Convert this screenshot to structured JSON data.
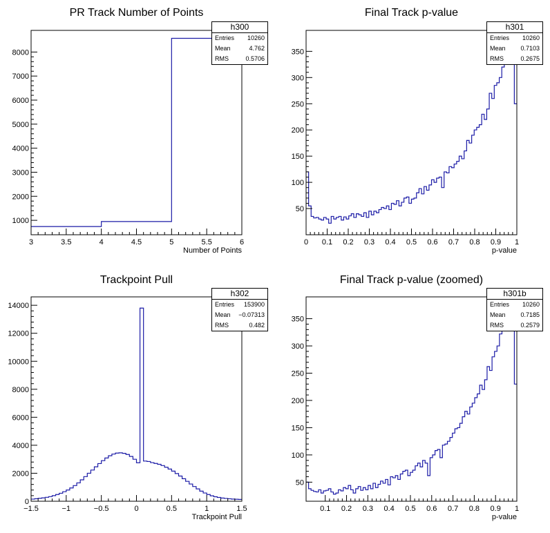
{
  "chart_data": [
    {
      "type": "histogram",
      "title": "PR Track Number of Points",
      "name": "h300",
      "xlabel": "Number of Points",
      "xlim": [
        3,
        6
      ],
      "ylim": [
        400,
        8900
      ],
      "xticks": [
        3,
        3.5,
        4,
        4.5,
        5,
        5.5,
        6
      ],
      "xtick_labels": [
        "3",
        "3.5",
        "4",
        "4.5",
        "5",
        "5.5",
        "6"
      ],
      "yticks": [
        1000,
        2000,
        3000,
        4000,
        5000,
        6000,
        7000,
        8000
      ],
      "ytick_labels": [
        "1000",
        "2000",
        "3000",
        "4000",
        "5000",
        "6000",
        "7000",
        "8000"
      ],
      "bins": {
        "edges": [
          3,
          4,
          5,
          6
        ],
        "values": [
          740,
          950,
          8570
        ]
      },
      "stats": [
        {
          "label": "Entries",
          "value": "10260"
        },
        {
          "label": "Mean",
          "value": "4.762"
        },
        {
          "label": "RMS",
          "value": "0.5706"
        }
      ]
    },
    {
      "type": "histogram",
      "title": "Final Track p-value",
      "name": "h301",
      "xlabel": "p-value",
      "xlim": [
        0,
        1
      ],
      "ylim": [
        0,
        390
      ],
      "xticks": [
        0,
        0.1,
        0.2,
        0.3,
        0.4,
        0.5,
        0.6,
        0.7,
        0.8,
        0.9,
        1
      ],
      "xtick_labels": [
        "0",
        "0.1",
        "0.2",
        "0.3",
        "0.4",
        "0.5",
        "0.6",
        "0.7",
        "0.8",
        "0.9",
        "1"
      ],
      "yticks": [
        50,
        100,
        150,
        200,
        250,
        300,
        350
      ],
      "ytick_labels": [
        "50",
        "100",
        "150",
        "200",
        "250",
        "300",
        "350"
      ],
      "bins": {
        "xmin": 0,
        "xmax": 1,
        "values": [
          120,
          55,
          35,
          32,
          33,
          30,
          28,
          33,
          30,
          22,
          35,
          30,
          33,
          35,
          28,
          34,
          30,
          36,
          40,
          33,
          40,
          38,
          35,
          42,
          33,
          45,
          38,
          45,
          42,
          48,
          52,
          50,
          55,
          48,
          60,
          58,
          65,
          55,
          62,
          70,
          72,
          60,
          68,
          70,
          80,
          88,
          78,
          92,
          85,
          95,
          105,
          100,
          108,
          110,
          90,
          120,
          118,
          130,
          128,
          135,
          140,
          150,
          145,
          160,
          180,
          175,
          190,
          200,
          205,
          210,
          230,
          220,
          240,
          270,
          260,
          285,
          290,
          300,
          320,
          360,
          340,
          380,
          330,
          250
        ]
      },
      "stats": [
        {
          "label": "Entries",
          "value": "10260"
        },
        {
          "label": "Mean",
          "value": "0.7103"
        },
        {
          "label": "RMS",
          "value": "0.2675"
        }
      ]
    },
    {
      "type": "histogram",
      "title": "Trackpoint Pull",
      "name": "h302",
      "xlabel": "Trackpoint Pull",
      "xlim": [
        -1.5,
        1.5
      ],
      "ylim": [
        0,
        14600
      ],
      "xticks": [
        -1.5,
        -1,
        -0.5,
        0,
        0.5,
        1,
        1.5
      ],
      "xtick_labels": [
        "−1.5",
        "−1",
        "−0.5",
        "0",
        "0.5",
        "1",
        "1.5"
      ],
      "yticks": [
        0,
        2000,
        4000,
        6000,
        8000,
        10000,
        12000,
        14000
      ],
      "ytick_labels": [
        "0",
        "2000",
        "4000",
        "6000",
        "8000",
        "10000",
        "12000",
        "14000"
      ],
      "bins": {
        "xmin": -1.5,
        "xmax": 1.5,
        "values": [
          150,
          180,
          210,
          240,
          280,
          330,
          400,
          480,
          570,
          680,
          800,
          950,
          1120,
          1310,
          1530,
          1760,
          2000,
          2230,
          2460,
          2690,
          2900,
          3090,
          3250,
          3370,
          3440,
          3460,
          3420,
          3340,
          3200,
          3000,
          2750,
          13800,
          2870,
          2840,
          2760,
          2700,
          2640,
          2550,
          2430,
          2300,
          2150,
          1980,
          1800,
          1610,
          1420,
          1230,
          1050,
          880,
          720,
          590,
          480,
          390,
          320,
          270,
          230,
          200,
          175,
          155,
          140,
          130
        ]
      },
      "stats": [
        {
          "label": "Entries",
          "value": "153900"
        },
        {
          "label": "Mean",
          "value": "−0.07313"
        },
        {
          "label": "RMS",
          "value": "0.482"
        }
      ]
    },
    {
      "type": "histogram",
      "title": "Final Track p-value (zoomed)",
      "name": "h301b",
      "xlabel": "p-value",
      "xlim": [
        0.01,
        1
      ],
      "ylim": [
        15,
        390
      ],
      "xticks": [
        0.1,
        0.2,
        0.3,
        0.4,
        0.5,
        0.6,
        0.7,
        0.8,
        0.9,
        1
      ],
      "xtick_labels": [
        "0.1",
        "0.2",
        "0.3",
        "0.4",
        "0.5",
        "0.6",
        "0.7",
        "0.8",
        "0.9",
        "1"
      ],
      "yticks": [
        50,
        100,
        150,
        200,
        250,
        300,
        350
      ],
      "ytick_labels": [
        "50",
        "100",
        "150",
        "200",
        "250",
        "300",
        "350"
      ],
      "bins": {
        "xmin": 0.01,
        "xmax": 1,
        "values": [
          50,
          38,
          35,
          33,
          32,
          36,
          30,
          34,
          35,
          38,
          32,
          28,
          30,
          36,
          34,
          40,
          38,
          44,
          36,
          30,
          38,
          42,
          35,
          40,
          36,
          44,
          38,
          48,
          40,
          46,
          52,
          48,
          55,
          45,
          60,
          58,
          62,
          55,
          65,
          70,
          72,
          62,
          68,
          72,
          80,
          85,
          78,
          90,
          85,
          62,
          95,
          100,
          108,
          110,
          95,
          118,
          120,
          125,
          132,
          140,
          148,
          150,
          158,
          170,
          180,
          175,
          188,
          195,
          205,
          212,
          228,
          220,
          238,
          262,
          255,
          280,
          290,
          300,
          322,
          338,
          330,
          350,
          370,
          330,
          230
        ]
      },
      "stats": [
        {
          "label": "Entries",
          "value": "10260"
        },
        {
          "label": "Mean",
          "value": "0.7185"
        },
        {
          "label": "RMS",
          "value": "0.2579"
        }
      ]
    }
  ]
}
